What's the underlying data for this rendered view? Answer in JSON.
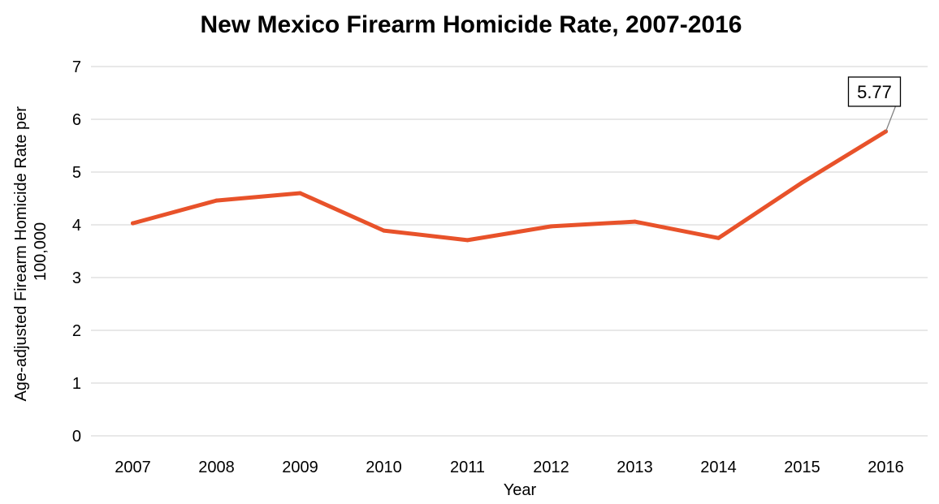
{
  "chart_data": {
    "type": "line",
    "title": "New Mexico Firearm Homicide Rate, 2007-2016",
    "xlabel": "Year",
    "ylabel_lines": [
      "Age-adjusted Firearm Homicide Rate per",
      "100,000"
    ],
    "categories": [
      "2007",
      "2008",
      "2009",
      "2010",
      "2011",
      "2012",
      "2013",
      "2014",
      "2015",
      "2016"
    ],
    "series": [
      {
        "values": [
          4.03,
          4.46,
          4.6,
          3.89,
          3.71,
          3.97,
          4.06,
          3.75,
          4.8,
          5.77
        ],
        "color": "#E8522A"
      }
    ],
    "ylim": [
      0,
      7
    ],
    "yticks": [
      0,
      1,
      2,
      3,
      4,
      5,
      6,
      7
    ],
    "grid": true,
    "legend": "none",
    "annotation": {
      "category": "2016",
      "text": "5.77"
    }
  }
}
